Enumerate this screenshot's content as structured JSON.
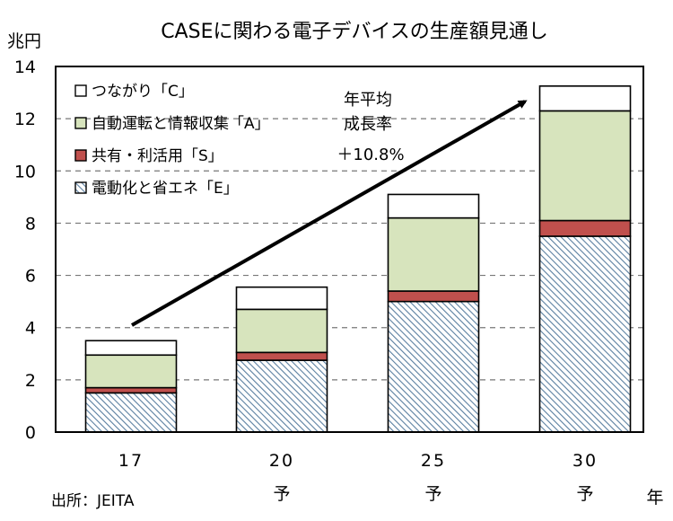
{
  "chart_data": {
    "type": "bar",
    "stacked": true,
    "title": "CASEに関わる電子デバイスの生産額見通し",
    "ylabel": "兆円",
    "xlabel": "年",
    "ylim": [
      0,
      14
    ],
    "yticks": [
      0,
      2,
      4,
      6,
      8,
      10,
      12,
      14
    ],
    "grid": true,
    "legend_position": "top-left",
    "categories": [
      {
        "year": "17",
        "note": ""
      },
      {
        "year": "20",
        "note": "予"
      },
      {
        "year": "25",
        "note": "予"
      },
      {
        "year": "30",
        "note": "予"
      }
    ],
    "series": [
      {
        "name": "電動化と省エネ「E」",
        "key": "E",
        "pattern": "hatch",
        "color": "#5a7fa0",
        "values": [
          1.5,
          2.75,
          5.0,
          7.5
        ]
      },
      {
        "name": "共有・利活用「S」",
        "key": "S",
        "pattern": "solid",
        "color": "#c0504d",
        "values": [
          0.2,
          0.3,
          0.4,
          0.6
        ]
      },
      {
        "name": "自動運転と情報収集「A」",
        "key": "A",
        "pattern": "solid",
        "color": "#d7e4bd",
        "values": [
          1.25,
          1.65,
          2.8,
          4.2
        ]
      },
      {
        "name": "つながり「C」",
        "key": "C",
        "pattern": "solid",
        "color": "#ffffff",
        "values": [
          0.55,
          0.85,
          0.9,
          0.95
        ]
      }
    ],
    "legend_order": [
      "C",
      "A",
      "S",
      "E"
    ],
    "annotation": {
      "lines": [
        "年平均",
        "成長率",
        "＋10.8%"
      ]
    },
    "source": "出所：JEITA"
  }
}
